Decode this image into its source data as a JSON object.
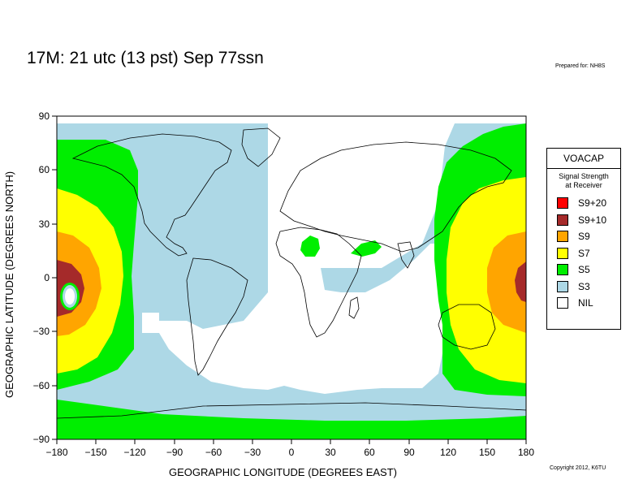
{
  "title": "17M:  21 utc (13 pst) Sep 77ssn",
  "prepared_for": "Prepared for: NH8S",
  "copyright": "Copyright 2012, K6TU",
  "x_axis_label": "GEOGRAPHIC LONGITUDE (DEGREES EAST)",
  "y_axis_label": "GEOGRAPHIC LATITUDE (DEGREES NORTH)",
  "x_ticks": [
    "−180",
    "−150",
    "−120",
    "−90",
    "−60",
    "−30",
    "0",
    "30",
    "60",
    "90",
    "120",
    "150",
    "180"
  ],
  "y_ticks": [
    "90",
    "60",
    "30",
    "0",
    "−30",
    "−60",
    "−90"
  ],
  "legend": {
    "title": "VOACAP",
    "subtitle_line1": "Signal Strength",
    "subtitle_line2": "at Receiver",
    "items": [
      {
        "label": "S9+20",
        "color": "#ff0000"
      },
      {
        "label": "S9+10",
        "color": "#a52a2a"
      },
      {
        "label": "S9",
        "color": "#ffa500"
      },
      {
        "label": "S7",
        "color": "#ffff00"
      },
      {
        "label": "S5",
        "color": "#00ee00"
      },
      {
        "label": "S3",
        "color": "#add8e6"
      },
      {
        "label": "NIL",
        "color": "#ffffff"
      }
    ]
  },
  "colors": {
    "s9": "#ffa500",
    "s9p10": "#a52a2a",
    "s7": "#ffff00",
    "s5": "#00ee00",
    "s3": "#add8e6",
    "land_outline": "#000000"
  }
}
